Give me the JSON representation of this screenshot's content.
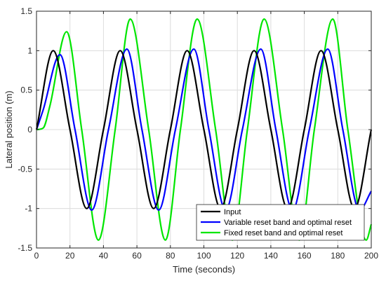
{
  "chart_data": {
    "type": "line",
    "title": "",
    "xlabel": "Time (seconds)",
    "ylabel": "Lateral position (m)",
    "xlim": [
      0,
      200
    ],
    "ylim": [
      -1.5,
      1.5
    ],
    "x_ticks": [
      "0",
      "20",
      "40",
      "60",
      "80",
      "100",
      "120",
      "140",
      "160",
      "180",
      "200"
    ],
    "y_ticks": [
      "1.5",
      "1",
      "0.5",
      "0",
      "-0.5",
      "-1",
      "-1.5"
    ],
    "grid": true,
    "legend_position": "bottom-right",
    "series": [
      {
        "name": "Input",
        "color": "#000000",
        "x": [
          0,
          10,
          20,
          30,
          40,
          50,
          60,
          70,
          80,
          90,
          100,
          110,
          120,
          130,
          140,
          150,
          160,
          170,
          180,
          190,
          200
        ],
        "y": [
          0,
          1,
          0,
          -1,
          0,
          1,
          0,
          -1,
          0,
          1,
          0,
          -1,
          0,
          1,
          0,
          -1,
          0,
          1,
          0,
          -1,
          0
        ]
      },
      {
        "name": "Variable reset band and optimal reset",
        "color": "#0000ff",
        "x": [
          0,
          4,
          14,
          23,
          33,
          43,
          54,
          63,
          73,
          83,
          94,
          103,
          113,
          123,
          134,
          143,
          153,
          163,
          174,
          183,
          193,
          200
        ],
        "y": [
          0,
          0.25,
          0.95,
          0,
          -1.02,
          0,
          1.02,
          0,
          -1.02,
          0,
          1.02,
          0,
          -1.02,
          0,
          1.02,
          0,
          -1.02,
          0,
          1.02,
          0,
          -1.02,
          -0.78
        ]
      },
      {
        "name": "Fixed reset band and optimal reset",
        "color": "#00e600",
        "x": [
          0,
          4,
          8,
          18,
          27,
          37,
          47,
          56,
          67,
          77,
          86,
          96,
          107,
          117,
          126,
          136,
          147,
          157,
          166,
          177,
          186,
          197,
          200
        ],
        "y": [
          0,
          0.02,
          0.3,
          1.24,
          0,
          -1.4,
          0,
          1.4,
          0,
          -1.4,
          0,
          1.4,
          0,
          -1.4,
          0,
          1.4,
          0,
          -1.4,
          0,
          1.4,
          0,
          -1.4,
          -1.2
        ]
      }
    ]
  }
}
